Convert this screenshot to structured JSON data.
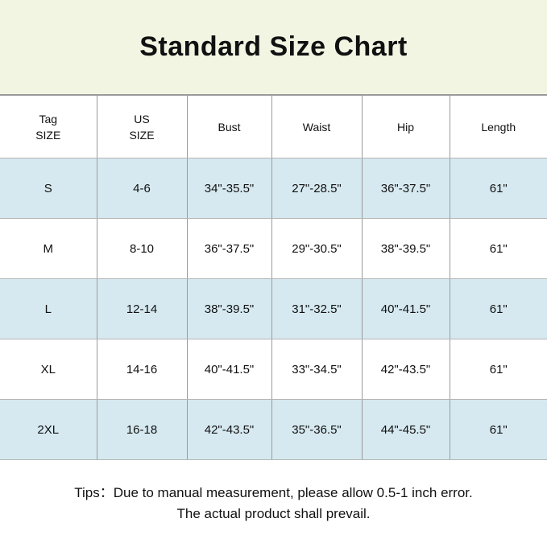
{
  "title": "Standard Size Chart",
  "colors": {
    "title_bg": "#f3f5e3",
    "alt_row_bg": "#d6e9f0"
  },
  "headers": [
    [
      "Tag",
      "SIZE"
    ],
    [
      "US",
      "SIZE"
    ],
    [
      "Bust"
    ],
    [
      "Waist"
    ],
    [
      "Hip"
    ],
    [
      "Length"
    ]
  ],
  "rows": [
    [
      "S",
      "4-6",
      "34\"-35.5\"",
      "27\"-28.5\"",
      "36\"-37.5\"",
      "61\""
    ],
    [
      "M",
      "8-10",
      "36\"-37.5\"",
      "29\"-30.5\"",
      "38\"-39.5\"",
      "61\""
    ],
    [
      "L",
      "12-14",
      "38\"-39.5\"",
      "31\"-32.5\"",
      "40\"-41.5\"",
      "61\""
    ],
    [
      "XL",
      "14-16",
      "40\"-41.5\"",
      "33\"-34.5\"",
      "42\"-43.5\"",
      "61\""
    ],
    [
      "2XL",
      "16-18",
      "42\"-43.5\"",
      "35\"-36.5\"",
      "44\"-45.5\"",
      "61\""
    ]
  ],
  "tips": {
    "line1": "Tips：Due to manual measurement,  please allow  0.5-1  inch error.",
    "line2": "The actual product shall prevail."
  }
}
